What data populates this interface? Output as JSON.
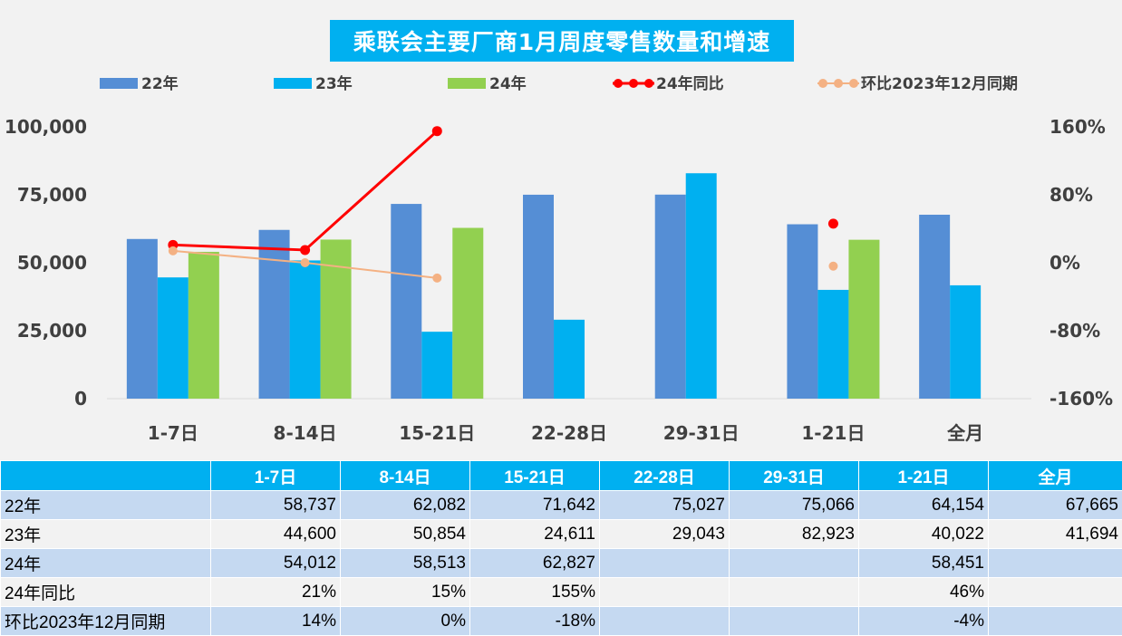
{
  "chart_data": {
    "type": "bar",
    "title": "乘联会主要厂商1月周度零售数量和增速",
    "categories": [
      "1-7日",
      "8-14日",
      "15-21日",
      "22-28日",
      "29-31日",
      "1-21日",
      "全月"
    ],
    "series": [
      {
        "name": "22年",
        "kind": "bar",
        "axis": "left",
        "color": "#558ed5",
        "values": [
          58737,
          62082,
          71642,
          75027,
          75066,
          64154,
          67665
        ]
      },
      {
        "name": "23年",
        "kind": "bar",
        "axis": "left",
        "color": "#00b0f0",
        "values": [
          44600,
          50854,
          24611,
          29043,
          82923,
          40022,
          41694
        ]
      },
      {
        "name": "24年",
        "kind": "bar",
        "axis": "left",
        "color": "#92d050",
        "values": [
          54012,
          58513,
          62827,
          null,
          null,
          58451,
          null
        ]
      },
      {
        "name": "24年同比",
        "kind": "line",
        "axis": "right",
        "color": "#ff0000",
        "values": [
          21,
          15,
          155,
          null,
          null,
          46,
          null
        ]
      },
      {
        "name": "环比2023年12月同期",
        "kind": "line",
        "axis": "right",
        "color": "#f4b183",
        "values": [
          14,
          0,
          -18,
          null,
          null,
          -4,
          null
        ]
      }
    ],
    "y_left": {
      "min": 0,
      "max": 100000,
      "ticks": [
        "0",
        "25,000",
        "50,000",
        "75,000",
        "100,000"
      ]
    },
    "y_right": {
      "min": -160,
      "max": 160,
      "ticks": [
        "-160%",
        "-80%",
        "0%",
        "80%",
        "160%"
      ]
    },
    "legend_position": "top"
  },
  "table": {
    "header": [
      "",
      "1-7日",
      "8-14日",
      "15-21日",
      "22-28日",
      "29-31日",
      "1-21日",
      "全月"
    ],
    "rows": [
      [
        "22年",
        "58,737",
        "62,082",
        "71,642",
        "75,027",
        "75,066",
        "64,154",
        "67,665"
      ],
      [
        "23年",
        "44,600",
        "50,854",
        "24,611",
        "29,043",
        "82,923",
        "40,022",
        "41,694"
      ],
      [
        "24年",
        "54,012",
        "58,513",
        "62,827",
        "",
        "",
        "58,451",
        ""
      ],
      [
        "24年同比",
        "21%",
        "15%",
        "155%",
        "",
        "",
        "46%",
        ""
      ],
      [
        "环比2023年12月同期",
        "14%",
        "0%",
        "-18%",
        "",
        "",
        "-4%",
        ""
      ]
    ]
  }
}
